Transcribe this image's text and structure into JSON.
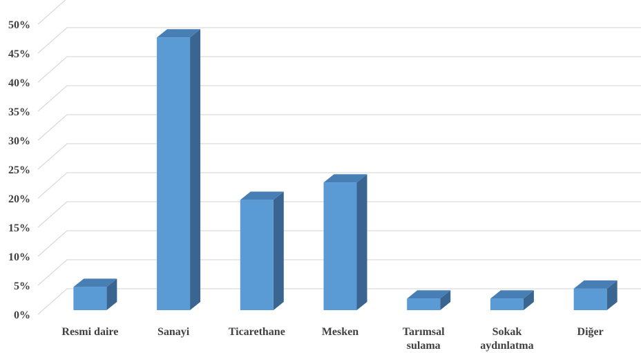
{
  "chart_data": {
    "type": "bar",
    "style": "3d-column",
    "categories": [
      "Resmi daire",
      "Sanayi",
      "Ticarethane",
      "Mesken",
      "Tarımsal sulama",
      "Sokak aydınlatma",
      "Diğer"
    ],
    "category_label_lines": [
      [
        "Resmi daire"
      ],
      [
        "Sanayi"
      ],
      [
        "Ticarethane"
      ],
      [
        "Mesken"
      ],
      [
        "Tarımsal",
        "sulama"
      ],
      [
        "Sokak",
        "aydınlatma"
      ],
      [
        "Diğer"
      ]
    ],
    "values": [
      4,
      47,
      19,
      22,
      2,
      2,
      3.7
    ],
    "y_ticks": [
      "0%",
      "5%",
      "10%",
      "15%",
      "20%",
      "25%",
      "30%",
      "35%",
      "40%",
      "45%",
      "50%"
    ],
    "ylim": [
      0,
      50
    ],
    "unit": "%",
    "title": "",
    "xlabel": "",
    "ylabel": "",
    "grid": true,
    "legend": "none",
    "colors": {
      "front": "#5b9bd5",
      "side": "#3a6591",
      "top": "#477fb5",
      "grid": "#d9d9d9",
      "text": "#404040"
    }
  }
}
